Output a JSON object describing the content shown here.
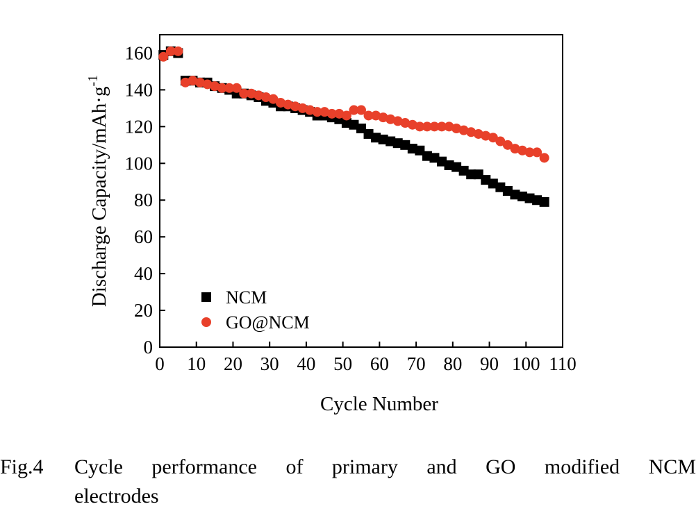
{
  "chart_data": {
    "type": "scatter",
    "xlabel": "Cycle Number",
    "ylabel": "Discharge Capacity/mAh·g",
    "ylabel_sup": "-1",
    "xlim": [
      0,
      110
    ],
    "ylim": [
      0,
      170
    ],
    "xticks": [
      0,
      10,
      20,
      30,
      40,
      50,
      60,
      70,
      80,
      90,
      100,
      110
    ],
    "yticks": [
      0,
      20,
      40,
      60,
      80,
      100,
      120,
      140,
      160
    ],
    "grid": false,
    "legend_position": "lower-left",
    "series": [
      {
        "name": "NCM",
        "marker": "square",
        "color": "#000000",
        "x": [
          1,
          3,
          5,
          7,
          9,
          11,
          13,
          15,
          17,
          19,
          21,
          23,
          25,
          27,
          29,
          31,
          33,
          35,
          37,
          39,
          41,
          43,
          45,
          47,
          49,
          51,
          53,
          55,
          57,
          59,
          61,
          63,
          65,
          67,
          69,
          71,
          73,
          75,
          77,
          79,
          81,
          83,
          85,
          87,
          89,
          91,
          93,
          95,
          97,
          99,
          101,
          103,
          105
        ],
        "y": [
          159,
          161,
          160,
          145,
          145,
          144,
          144,
          142,
          141,
          140,
          138,
          138,
          137,
          136,
          134,
          133,
          131,
          131,
          130,
          129,
          128,
          126,
          126,
          125,
          124,
          122,
          121,
          119,
          116,
          114,
          113,
          112,
          111,
          110,
          108,
          107,
          104,
          103,
          101,
          99,
          98,
          96,
          94,
          94,
          91,
          89,
          87,
          85,
          83,
          82,
          81,
          80,
          79
        ]
      },
      {
        "name": "GO@NCM",
        "marker": "circle",
        "color": "#e8402a",
        "x": [
          1,
          3,
          5,
          7,
          9,
          11,
          13,
          15,
          17,
          19,
          21,
          23,
          25,
          27,
          29,
          31,
          33,
          35,
          37,
          39,
          41,
          43,
          45,
          47,
          49,
          51,
          53,
          55,
          57,
          59,
          61,
          63,
          65,
          67,
          69,
          71,
          73,
          75,
          77,
          79,
          81,
          83,
          85,
          87,
          89,
          91,
          93,
          95,
          97,
          99,
          101,
          103,
          105
        ],
        "y": [
          158,
          161,
          161,
          144,
          145,
          144,
          143,
          142,
          141,
          141,
          141,
          138,
          138,
          137,
          136,
          135,
          133,
          132,
          131,
          130,
          129,
          128,
          128,
          127,
          127,
          126,
          129,
          129,
          126,
          126,
          125,
          124,
          123,
          122,
          121,
          120,
          120,
          120,
          120,
          120,
          119,
          118,
          117,
          116,
          115,
          114,
          112,
          110,
          108,
          107,
          106,
          106,
          103
        ]
      }
    ]
  },
  "caption": {
    "label": "Fig.4",
    "line1": "Cycle performance of primary and GO modified NCM",
    "line2": "electrodes"
  }
}
